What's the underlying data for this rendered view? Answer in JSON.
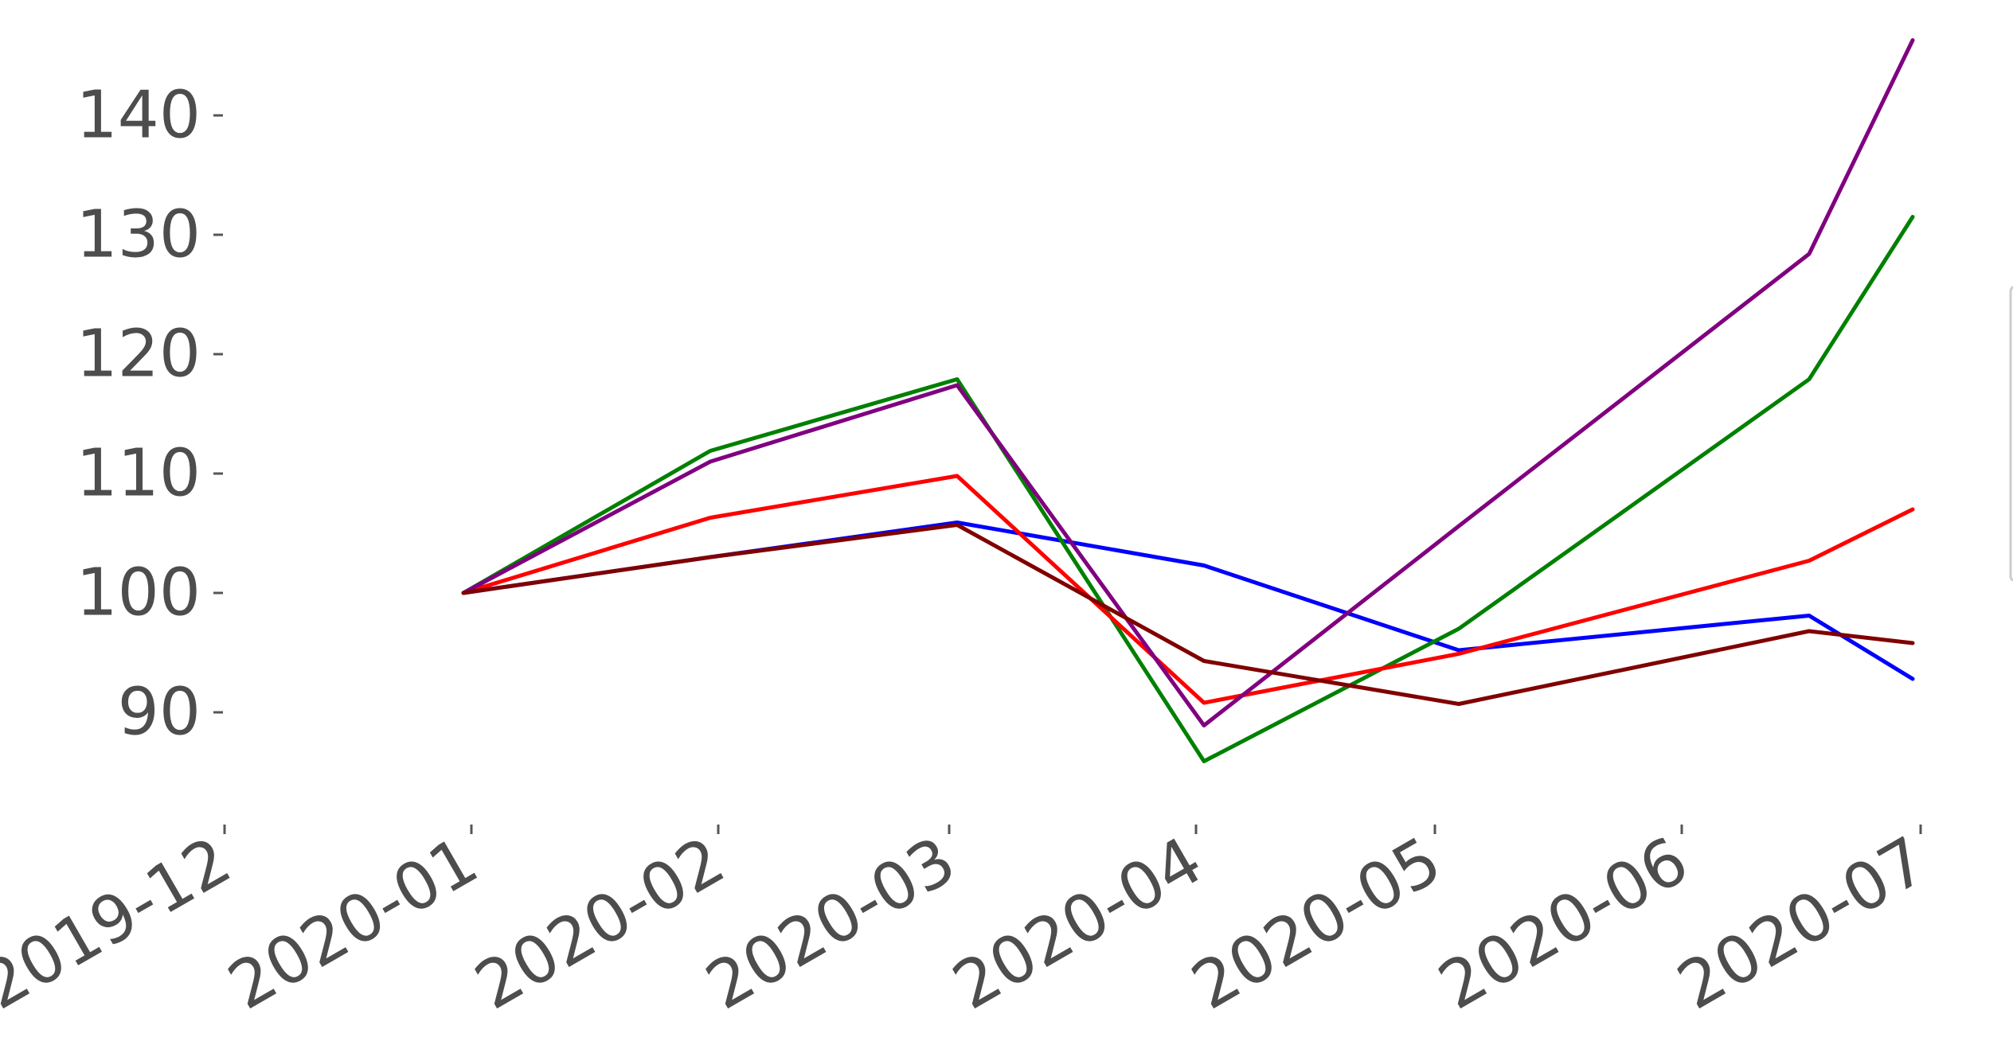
{
  "chart_data": {
    "type": "line",
    "title": "",
    "xlabel": "",
    "ylabel": "",
    "x_tick_labels": [
      "2019-12",
      "2020-01",
      "2020-02",
      "2020-03",
      "2020-04",
      "2020-05",
      "2020-06",
      "2020-07"
    ],
    "y_ticks": [
      90,
      100,
      110,
      120,
      130,
      140
    ],
    "xlim": [
      "2019-12-01",
      "2020-07-01"
    ],
    "ylim": [
      82,
      147
    ],
    "grid": false,
    "x": [
      "2019-12-31",
      "2020-01-31",
      "2020-03-02",
      "2020-04-02",
      "2020-05-04",
      "2020-06-17",
      "2020-06-30"
    ],
    "series": [
      {
        "color": "#0000ff",
        "values": [
          100.0,
          103.0,
          105.9,
          102.3,
          95.2,
          98.1,
          92.8
        ]
      },
      {
        "color": "#008000",
        "values": [
          100.0,
          111.9,
          117.9,
          85.9,
          97.0,
          117.9,
          131.5
        ]
      },
      {
        "color": "#ff0000",
        "values": [
          100.0,
          106.3,
          109.8,
          90.8,
          94.9,
          102.7,
          107.0
        ]
      },
      {
        "color": "#800080",
        "values": [
          100.0,
          111.0,
          117.4,
          88.9,
          105.6,
          128.4,
          146.3
        ]
      },
      {
        "color": "#800000",
        "values": [
          100.0,
          103.0,
          105.7,
          94.3,
          90.7,
          96.8,
          95.8
        ]
      }
    ]
  }
}
